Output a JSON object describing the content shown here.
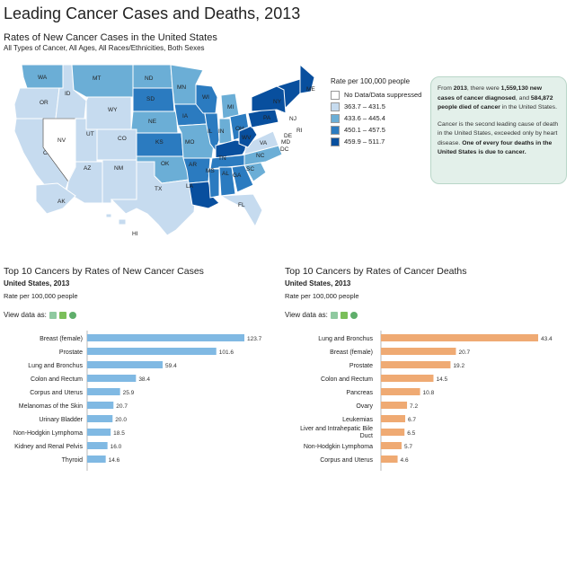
{
  "page_title": "Leading Cancer Cases and Deaths, 2013",
  "map": {
    "title": "Rates of New Cancer Cases in the United States",
    "subtitle": "All Types of Cancer, All Ages, All Races/Ethnicities, Both Sexes",
    "legend_title": "Rate per 100,000 people",
    "legend": [
      {
        "label": "No Data/Data suppressed",
        "color": "#ffffff"
      },
      {
        "label": "363.7 – 431.5",
        "color": "#c6dbef"
      },
      {
        "label": "433.6 – 445.4",
        "color": "#6baed6"
      },
      {
        "label": "450.1 – 457.5",
        "color": "#2b7bc0"
      },
      {
        "label": "459.9 – 511.7",
        "color": "#084f9e"
      }
    ],
    "states": [
      {
        "abbr": "WA",
        "cls": 2
      },
      {
        "abbr": "OR",
        "cls": 1
      },
      {
        "abbr": "CA",
        "cls": 1
      },
      {
        "abbr": "ID",
        "cls": 1
      },
      {
        "abbr": "NV",
        "cls": 0
      },
      {
        "abbr": "MT",
        "cls": 2
      },
      {
        "abbr": "WY",
        "cls": 1
      },
      {
        "abbr": "UT",
        "cls": 1
      },
      {
        "abbr": "AZ",
        "cls": 1
      },
      {
        "abbr": "CO",
        "cls": 1
      },
      {
        "abbr": "NM",
        "cls": 1
      },
      {
        "abbr": "ND",
        "cls": 2
      },
      {
        "abbr": "SD",
        "cls": 3
      },
      {
        "abbr": "NE",
        "cls": 2
      },
      {
        "abbr": "KS",
        "cls": 3
      },
      {
        "abbr": "OK",
        "cls": 2
      },
      {
        "abbr": "TX",
        "cls": 1
      },
      {
        "abbr": "MN",
        "cls": 2
      },
      {
        "abbr": "IA",
        "cls": 3
      },
      {
        "abbr": "MO",
        "cls": 2
      },
      {
        "abbr": "AR",
        "cls": 3
      },
      {
        "abbr": "LA",
        "cls": 4
      },
      {
        "abbr": "WI",
        "cls": 3
      },
      {
        "abbr": "IL",
        "cls": 3
      },
      {
        "abbr": "MI",
        "cls": 2
      },
      {
        "abbr": "IN",
        "cls": 2
      },
      {
        "abbr": "OH",
        "cls": 3
      },
      {
        "abbr": "KY",
        "cls": 4
      },
      {
        "abbr": "TN",
        "cls": 3
      },
      {
        "abbr": "MS",
        "cls": 3
      },
      {
        "abbr": "AL",
        "cls": 3
      },
      {
        "abbr": "GA",
        "cls": 3
      },
      {
        "abbr": "FL",
        "cls": 1
      },
      {
        "abbr": "SC",
        "cls": 2
      },
      {
        "abbr": "NC",
        "cls": 2
      },
      {
        "abbr": "VA",
        "cls": 1
      },
      {
        "abbr": "WV",
        "cls": 4
      },
      {
        "abbr": "PA",
        "cls": 4
      },
      {
        "abbr": "NY",
        "cls": 4
      },
      {
        "abbr": "ME",
        "cls": 4
      },
      {
        "abbr": "AK",
        "cls": 1
      },
      {
        "abbr": "HI",
        "cls": 1
      },
      {
        "abbr": "MD",
        "cls": 3
      },
      {
        "abbr": "DE",
        "cls": 4
      },
      {
        "abbr": "NJ",
        "cls": 4
      },
      {
        "abbr": "RI",
        "cls": 4
      },
      {
        "abbr": "DC",
        "cls": 3
      }
    ]
  },
  "info": {
    "p1_a": "From ",
    "p1_year": "2013",
    "p1_b": ", there were ",
    "p1_cases": "1,559,130 new cases of cancer diagnosed",
    "p1_c": ", and ",
    "p1_deaths": "584,872 people died of cancer",
    "p1_d": " in the United States.",
    "p2_a": "Cancer is the second leading cause of death in the United States, exceeded only by heart disease. ",
    "p2_b": "One of every four deaths in the United States is due to cancer."
  },
  "view_label": "View data as:",
  "colors": {
    "cases_bar": "#80b9e3",
    "deaths_bar": "#efaa73"
  },
  "chart_data": [
    {
      "type": "bar",
      "orientation": "horizontal",
      "title": "Top 10 Cancers by Rates of New Cancer Cases",
      "subtitle": "United States, 2013",
      "note": "Rate per 100,000 people",
      "categories": [
        "Breast (female)",
        "Prostate",
        "Lung and Bronchus",
        "Colon and Rectum",
        "Corpus and Uterus",
        "Melanomas of the Skin",
        "Urinary Bladder",
        "Non-Hodgkin Lymphoma",
        "Kidney and Renal Pelvis",
        "Thyroid"
      ],
      "values": [
        123.7,
        101.6,
        59.4,
        38.4,
        25.9,
        20.7,
        20.0,
        18.5,
        16.0,
        14.6
      ],
      "labels": [
        "123.7",
        "101.6",
        "59.4",
        "38.4",
        "25.9",
        "20.7",
        "20.0",
        "18.5",
        "16.0",
        "14.6"
      ],
      "xlim": [
        0,
        123.7
      ]
    },
    {
      "type": "bar",
      "orientation": "horizontal",
      "title": "Top 10 Cancers by Rates of Cancer Deaths",
      "subtitle": "United States, 2013",
      "note": "Rate per 100,000 people",
      "categories": [
        "Lung and Bronchus",
        "Breast (female)",
        "Prostate",
        "Colon and Rectum",
        "Pancreas",
        "Ovary",
        "Leukemias",
        "Liver and Intrahepatic Bile Duct",
        "Non-Hodgkin Lymphoma",
        "Corpus and Uterus"
      ],
      "values": [
        43.4,
        20.7,
        19.2,
        14.5,
        10.8,
        7.2,
        6.7,
        6.5,
        5.7,
        4.6
      ],
      "labels": [
        "43.4",
        "20.7",
        "19.2",
        "14.5",
        "10.8",
        "7.2",
        "6.7",
        "6.5",
        "5.7",
        "4.6"
      ],
      "xlim": [
        0,
        43.4
      ]
    }
  ]
}
